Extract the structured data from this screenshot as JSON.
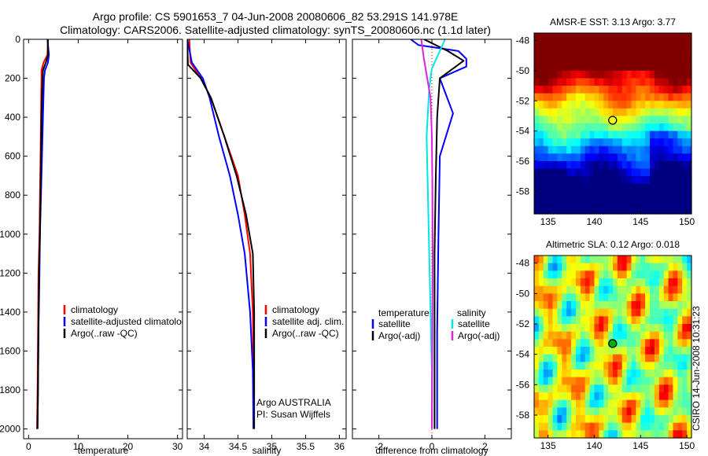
{
  "title_line1": "Argo profile: CS 5901653_7 04-Jun-2008 20080606_82 53.291S 141.978E",
  "title_line2": "Climatology: CARS2006. Satellite-adjusted climatology: synTS_20080606.nc (1.1d later)",
  "footer_text": "CSIRO 14-Jun-2008 10:31:23",
  "colors": {
    "climatology": "#ff0000",
    "satellite": "#0000ff",
    "argo": "#000000",
    "cyan": "#00e5e5",
    "magenta": "#e020e0"
  },
  "chart_data": [
    {
      "type": "line",
      "name": "temperature",
      "xlabel": "temperature",
      "xlim": [
        -1,
        31
      ],
      "ylim": [
        2050,
        0
      ],
      "xticks": [
        0,
        10,
        20,
        30
      ],
      "xtick_labels": [
        "0",
        "10",
        "20",
        "30"
      ],
      "yticks": [
        0,
        200,
        400,
        600,
        800,
        1000,
        1200,
        1400,
        1600,
        1800,
        2000
      ],
      "ytick_labels": [
        "0",
        "200",
        "400",
        "600",
        "800",
        "1000",
        "1200",
        "1400",
        "1600",
        "1800",
        "2000"
      ],
      "legend": [
        "climatology",
        "satellite-adjusted climatology",
        "Argo(..raw -QC)"
      ],
      "series": [
        {
          "name": "climatology",
          "color": "#ff0000",
          "x": [
            3.9,
            3.8,
            3.0,
            2.6,
            2.6,
            2.5,
            2.4,
            2.3,
            2.2,
            2.0,
            1.9,
            1.8,
            1.7
          ],
          "y": [
            0,
            80,
            120,
            160,
            200,
            400,
            600,
            800,
            1000,
            1200,
            1500,
            1800,
            2000
          ]
        },
        {
          "name": "satellite",
          "color": "#0000ff",
          "x": [
            3.8,
            4.1,
            3.9,
            3.3,
            3.1,
            2.9,
            2.7,
            2.5,
            2.3,
            2.2,
            2.0,
            1.9,
            1.8
          ],
          "y": [
            0,
            80,
            120,
            160,
            200,
            400,
            600,
            800,
            1000,
            1200,
            1500,
            1800,
            2000
          ]
        },
        {
          "name": "argo",
          "color": "#000000",
          "x": [
            3.9,
            3.9,
            3.6,
            2.9,
            2.8,
            2.6,
            2.5,
            2.4,
            2.3,
            2.1,
            2.0,
            1.9,
            1.8
          ],
          "y": [
            0,
            80,
            110,
            160,
            200,
            400,
            600,
            800,
            1000,
            1200,
            1500,
            1800,
            2000
          ]
        }
      ]
    },
    {
      "type": "line",
      "name": "salinity",
      "xlabel": "salinity",
      "xlim": [
        33.75,
        36.1
      ],
      "ylim": [
        2050,
        0
      ],
      "xticks": [
        34,
        34.5,
        35,
        35.5,
        36
      ],
      "xtick_labels": [
        "34",
        "34.5",
        "35",
        "35.5",
        "36"
      ],
      "legend": [
        "climatology",
        "satellite adj. clim.",
        "Argo(..raw -QC)"
      ],
      "annotation": [
        "Argo AUSTRALIA",
        "PI: Susan Wijffels"
      ],
      "series": [
        {
          "name": "climatology",
          "color": "#ff0000",
          "x": [
            33.78,
            33.8,
            33.95,
            34.1,
            34.3,
            34.5,
            34.6,
            34.68,
            34.72,
            34.73,
            34.73
          ],
          "y": [
            0,
            120,
            200,
            300,
            500,
            700,
            900,
            1100,
            1400,
            1700,
            2000
          ]
        },
        {
          "name": "satellite",
          "color": "#0000ff",
          "x": [
            33.75,
            33.82,
            33.98,
            34.08,
            34.22,
            34.38,
            34.5,
            34.6,
            34.68,
            34.72,
            34.73
          ],
          "y": [
            0,
            120,
            200,
            300,
            500,
            700,
            900,
            1100,
            1400,
            1700,
            2000
          ]
        },
        {
          "name": "argo",
          "color": "#000000",
          "x": [
            33.75,
            33.76,
            33.95,
            34.1,
            34.3,
            34.48,
            34.62,
            34.72,
            34.74,
            34.74,
            34.74
          ],
          "y": [
            0,
            130,
            200,
            300,
            500,
            700,
            900,
            1100,
            1400,
            1700,
            2000
          ]
        }
      ]
    },
    {
      "type": "line",
      "name": "difference",
      "xlabel": "difference from climatology",
      "xlim": [
        -3,
        3
      ],
      "ylim": [
        2050,
        0
      ],
      "xticks": [
        -2,
        0,
        2
      ],
      "xtick_labels": [
        "-2",
        "0",
        "2"
      ],
      "legend_left_title": "temperature",
      "legend_left": [
        "satellite",
        "Argo(-adj)"
      ],
      "legend_right_title": "salinity",
      "legend_right": [
        "satellite",
        "Argo(-adj)"
      ],
      "series": [
        {
          "name": "temperature satellite",
          "color": "#0000ff",
          "x": [
            -0.8,
            -0.5,
            1.0,
            1.3,
            1.3,
            0.3,
            0.8,
            0.3,
            0.25,
            0.2,
            0.2
          ],
          "y": [
            0,
            30,
            60,
            100,
            140,
            200,
            380,
            600,
            1000,
            1500,
            2000
          ]
        },
        {
          "name": "temperature argo",
          "color": "#000000",
          "x": [
            -0.3,
            0.6,
            1.2,
            0.8,
            0.3,
            0.2,
            0.15,
            0.1,
            0.1,
            0.1
          ],
          "y": [
            0,
            60,
            110,
            150,
            200,
            400,
            700,
            1100,
            1500,
            2000
          ]
        },
        {
          "name": "salinity satellite",
          "color": "#00e5e5",
          "x": [
            0.5,
            0.0,
            -0.1,
            -0.2,
            -0.15,
            -0.1,
            -0.05,
            0.0,
            0.0
          ],
          "y": [
            0,
            150,
            250,
            500,
            800,
            1100,
            1400,
            1700,
            2000
          ]
        },
        {
          "name": "salinity argo",
          "color": "#e020e0",
          "x": [
            -0.4,
            -0.3,
            -0.05,
            0.0,
            0.02,
            0.03,
            0.02,
            0.01,
            0.0
          ],
          "y": [
            0,
            100,
            300,
            500,
            800,
            1100,
            1400,
            1700,
            2000
          ]
        }
      ]
    },
    {
      "type": "heatmap",
      "name": "sst",
      "title": "AMSR-E SST: 3.13 Argo: 3.77",
      "xlim": [
        133.5,
        150.5
      ],
      "ylim": [
        -59.5,
        -47.5
      ],
      "xticks": [
        135,
        140,
        145,
        150
      ],
      "xtick_labels": [
        "135",
        "140",
        "145",
        "150"
      ],
      "yticks": [
        -48,
        -50,
        -52,
        -54,
        -56,
        -58
      ],
      "ytick_labels": [
        "-48",
        "-50",
        "-52",
        "-54",
        "-56",
        "-58"
      ],
      "marker": {
        "lon": 141.98,
        "lat": -53.29
      }
    },
    {
      "type": "heatmap",
      "name": "sla",
      "title": "Altimetric SLA: 0.12 Argo: 0.018",
      "xlim": [
        133.5,
        150.5
      ],
      "ylim": [
        -59.5,
        -47.5
      ],
      "xticks": [
        135,
        140,
        145,
        150
      ],
      "xtick_labels": [
        "135",
        "140",
        "145",
        "150"
      ],
      "yticks": [
        -48,
        -50,
        -52,
        -54,
        -56,
        -58
      ],
      "ytick_labels": [
        "-48",
        "-50",
        "-52",
        "-54",
        "-56",
        "-58"
      ],
      "marker": {
        "lon": 141.98,
        "lat": -53.29
      }
    }
  ]
}
